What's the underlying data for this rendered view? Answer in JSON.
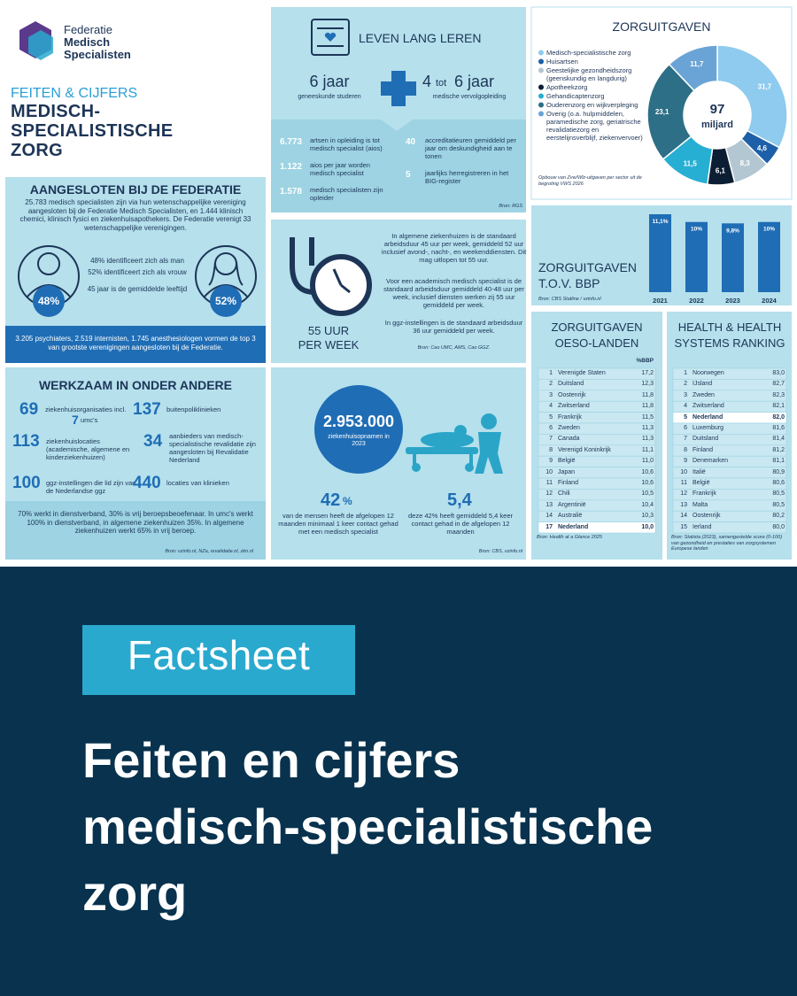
{
  "logo": {
    "lines": [
      "Federatie",
      "Medisch",
      "Specialisten"
    ]
  },
  "header": {
    "kicker": "FEITEN & CIJFERS",
    "title_lines": [
      "MEDISCH-",
      "SPECIALISTISCHE",
      "ZORG"
    ]
  },
  "aangesloten": {
    "title": "AANGESLOTEN BIJ DE FEDERATIE",
    "intro": "25.783 medisch specialisten zijn via hun wetenschappelijke vereniging aangesloten bij de Federatie Medisch Specialisten, en 1.444 klinisch chemici, klinisch fysici en ziekenhuisapothekers. De Federatie verenigt 33 wetenschappelijke verenigingen.",
    "man_pct": "48%",
    "vrouw_pct": "52%",
    "facts": [
      "48% identificeert zich als man",
      "52% identificeert zich als vrouw",
      "45 jaar is de gemiddelde leeftijd"
    ],
    "footer": "3.205 psychiaters, 2.519 internisten, 1.745 anesthesiologen vormen de top 3 van grootste verenigingen aangesloten bij de Federatie."
  },
  "werkzaam": {
    "title": "WERKZAAM IN ONDER ANDERE",
    "items": [
      {
        "num": "69",
        "text": "ziekenhuisorganisaties incl.",
        "num2": "7",
        "text2": "umc's"
      },
      {
        "num": "137",
        "text": "buitenpoliklinieken"
      },
      {
        "num": "113",
        "text": "ziekenhuislocaties (academische, algemene en kinderziekenhuizen)"
      },
      {
        "num": "34",
        "text": "aanbieders van medisch-specialistische revalidatie zijn aangesloten bij Revalidatie Nederland"
      },
      {
        "num": "100",
        "text": "ggz-instellingen die lid zijn van de Nederlandse ggz"
      },
      {
        "num": "440",
        "text": "locaties van klinieken"
      }
    ],
    "footer": "70% werkt in dienstverband, 30% is vrij beroepsbeoefenaar. In umc's werkt 100% in dienstverband, in algemene ziekenhuizen 35%. In algemene ziekenhuizen werkt 65% in vrij beroep.",
    "source": "Bron: vzinfo.nl, NZa, revalidatie.nl, zkn.nl"
  },
  "leren": {
    "title": "LEVEN LANG LEREN",
    "big1": "6 jaar",
    "sub1": "geneeskunde studeren",
    "big2_a": "4",
    "big2_tot": "tot",
    "big2_b": "6 jaar",
    "sub2": "medische vervolgopleiding",
    "stats": [
      {
        "num": "6.773",
        "text": "artsen in opleiding is tot medisch specialist (aios)"
      },
      {
        "num": "1.122",
        "text": "aios per jaar worden medisch specialist"
      },
      {
        "num": "1.578",
        "text": "medisch specialisten zijn opleider"
      },
      {
        "num": "40",
        "text": "accreditatieuren gemiddeld per jaar om deskundigheid aan te tonen"
      },
      {
        "num": "5",
        "text": "jaarlijks herregistreren in het BIG-register"
      }
    ],
    "source": "Bron: RGS"
  },
  "uren": {
    "label_lines": [
      "55 UUR",
      "PER WEEK"
    ],
    "paragraphs": [
      "In algemene ziekenhuizen is de standaard arbeidsduur 45 uur per week, gemiddeld 52 uur inclusief avond-, nacht-, en weekenddiensten. Dit mag uitlopen tot 55 uur.",
      "Voor een academisch medisch specialist is de standaard arbeidsduur gemiddeld 40-48 uur per week, inclusief diensten werken zij 55 uur gemiddeld per week.",
      "In ggz-instellingen is de standaard arbeidsduur 36 uur gemiddeld per week."
    ],
    "source": "Bron: Cao UMC, AMS, Cao GGZ."
  },
  "opnamen": {
    "big": "2.953.000",
    "sub": "ziekenhuisopnamen in 2023",
    "stat1_num": "42",
    "stat1_unit": "%",
    "stat1_text": "van de mensen heeft de afgelopen 12 maanden minimaal 1 keer contact gehad met een medisch specialist",
    "stat2_num": "5,4",
    "stat2_text": "deze 42% heeft gemiddeld 5,4 keer contact gehad in de afgelopen 12 maanden",
    "source": "Bron: CBS, vzinfo.nl"
  },
  "zorguitgaven": {
    "type": "pie",
    "title": "ZORGUITGAVEN",
    "categories": [
      "Medisch-specialistische zorg",
      "Huisartsen",
      "Geestelijke gezondheidszorg (geenskundig en langdurig)",
      "Apotheekzorg",
      "Gehandicaptenzorg",
      "Ouderenzorg en wijkverpleging",
      "Overig (o.a. hulpmiddelen, paramedische zorg, geriatrische revalidatiezorg en eerstelijnsverblijf, ziekenvervoer)"
    ],
    "values": [
      31.7,
      4.6,
      8.3,
      6.1,
      11.5,
      23.1,
      11.7
    ],
    "value_labels": [
      "31,7",
      "4,6",
      "8,3",
      "6,1",
      "11,5",
      "23,1",
      "11,7"
    ],
    "colors": [
      "#8ecbee",
      "#1d5fa8",
      "#b3c7d3",
      "#0c1e33",
      "#27aed3",
      "#2d6f86",
      "#6aa4d6"
    ],
    "center_num": "97",
    "center_unit": "miljard",
    "note": "Opbouw van Zvw/Wlz-uitgaven per sector uit de begroting VWS 2026"
  },
  "bbp": {
    "type": "bar",
    "title_lines": [
      "ZORGUITGAVEN",
      "T.O.V. BBP"
    ],
    "categories": [
      "2021",
      "2022",
      "2023",
      "2024"
    ],
    "values": [
      11.1,
      10,
      9.8,
      10
    ],
    "value_labels": [
      "11,1%",
      "10%",
      "9,8%",
      "10%"
    ],
    "color": "#1f6db5",
    "source": "Bron: CBS Statline / vzinfo.nl"
  },
  "oeso": {
    "title_lines": [
      "ZORGUITGAVEN",
      "OESO-LANDEN"
    ],
    "column": "%BBP",
    "rows": [
      [
        "1",
        "Verenigde Staten",
        "17,2"
      ],
      [
        "2",
        "Duitsland",
        "12,3"
      ],
      [
        "3",
        "Oostenrijk",
        "11,8"
      ],
      [
        "4",
        "Zwitserland",
        "11,8"
      ],
      [
        "5",
        "Frankrijk",
        "11,5"
      ],
      [
        "6",
        "Zweden",
        "11,3"
      ],
      [
        "7",
        "Canada",
        "11,3"
      ],
      [
        "8",
        "Verenigd Koninkrijk",
        "11,1"
      ],
      [
        "9",
        "België",
        "11,0"
      ],
      [
        "10",
        "Japan",
        "10,6"
      ],
      [
        "11",
        "Finland",
        "10,6"
      ],
      [
        "12",
        "Chili",
        "10,5"
      ],
      [
        "13",
        "Argentinië",
        "10,4"
      ],
      [
        "14",
        "Australië",
        "10,3"
      ],
      [
        "17",
        "Nederland",
        "10,0"
      ]
    ],
    "source": "Bron: Health at a Glance 2025"
  },
  "ranking": {
    "title_lines": [
      "HEALTH & HEALTH",
      "SYSTEMS RANKING"
    ],
    "rows": [
      [
        "1",
        "Noorwegen",
        "83,0"
      ],
      [
        "2",
        "IJsland",
        "82,7"
      ],
      [
        "3",
        "Zweden",
        "82,3"
      ],
      [
        "4",
        "Zwitserland",
        "82,1"
      ],
      [
        "5",
        "Nederland",
        "82,0"
      ],
      [
        "6",
        "Luxemburg",
        "81,6"
      ],
      [
        "7",
        "Duitsland",
        "81,4"
      ],
      [
        "8",
        "Finland",
        "81,2"
      ],
      [
        "9",
        "Denemarken",
        "81,1"
      ],
      [
        "10",
        "Italië",
        "80,9"
      ],
      [
        "11",
        "België",
        "80,6"
      ],
      [
        "12",
        "Frankrijk",
        "80,5"
      ],
      [
        "13",
        "Malta",
        "80,5"
      ],
      [
        "14",
        "Oostenrijk",
        "80,2"
      ],
      [
        "15",
        "Ierland",
        "80,0"
      ]
    ],
    "source": "Bron: Statista (2023), samengestelde score (0-100) van gezondheid en prestaties van zorgsystemen Europese landen"
  },
  "cover": {
    "badge": "Factsheet",
    "title_lines": [
      "Feiten en cijfers",
      "medisch-specialistische",
      "zorg"
    ]
  }
}
